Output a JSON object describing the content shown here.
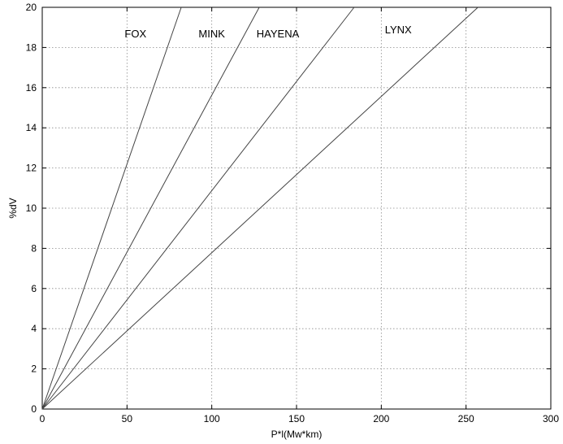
{
  "chart_data": {
    "type": "line",
    "title": "",
    "xlabel": "P*l(Mw*km)",
    "ylabel": "%dV",
    "xlim": [
      0,
      300
    ],
    "ylim": [
      0,
      20
    ],
    "xticks": [
      0,
      50,
      100,
      150,
      200,
      250,
      300
    ],
    "yticks": [
      0,
      2,
      4,
      6,
      8,
      10,
      12,
      14,
      16,
      18,
      20
    ],
    "grid": true,
    "grid_style": "dotted",
    "legend": "none",
    "line_color": "#444444",
    "series": [
      {
        "name": "FOX",
        "x": [
          0,
          82
        ],
        "y": [
          0,
          20
        ],
        "label_at": [
          55,
          18.5
        ]
      },
      {
        "name": "MINK",
        "x": [
          0,
          128
        ],
        "y": [
          0,
          20
        ],
        "label_at": [
          100,
          18.5
        ]
      },
      {
        "name": "HAYENA",
        "x": [
          0,
          184
        ],
        "y": [
          0,
          20
        ],
        "label_at": [
          139,
          18.5
        ]
      },
      {
        "name": "LYNX",
        "x": [
          0,
          257
        ],
        "y": [
          0,
          20
        ],
        "label_at": [
          210,
          18.7
        ]
      }
    ]
  }
}
